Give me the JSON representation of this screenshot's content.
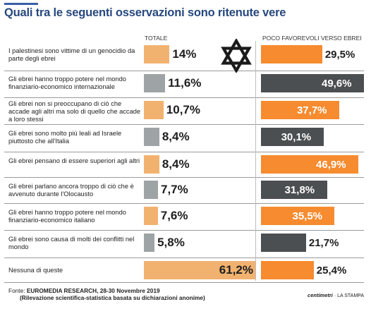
{
  "title": "Quali tra le seguenti osservazioni sono ritenute vere",
  "colors": {
    "accent": "#26487f",
    "total_bar": "#f2b26f",
    "total_bar_muted": "#9ea3a6",
    "poco_bar": "#f68b2f",
    "poco_bar_muted": "#4c4f52"
  },
  "icon": "star-of-david-icon",
  "source": {
    "prefix": "Fonte: ",
    "name": "EUROMEDIA RESEARCH, 28-30 Novembre 2019",
    "note": "(Rilevazione scientifica-statistica basata su dichiarazioni anonime)"
  },
  "credits": {
    "brand": "centimetri",
    "paper": "· LA STAMPA"
  },
  "chart_data": {
    "type": "bar",
    "orientation": "horizontal",
    "title": "Quali tra le seguenti osservazioni sono ritenute vere",
    "categories": [
      "I palestinesi sono vittime di un genocidio da parte degli ebrei",
      "Gli ebrei hanno troppo potere nel mondo finanziario-economico internazionale",
      "Gli ebrei non si preoccupano di ciò che accade agli altri ma solo di quello che accade a loro stessi",
      "Gli ebrei sono molto più leali ad Israele piuttosto che all'Italia",
      "Gli ebrei pensano di essere superiori agli altri",
      "Gli ebrei parlano ancora troppo di ciò che è avvenuto durante l'Olocausto",
      "Gli ebrei hanno troppo potere nel mondo finanziario-economico italiano",
      "Gli ebrei sono causa di molti dei conflitti nel mondo",
      "Nessuna di queste"
    ],
    "series": [
      {
        "name": "TOTALE",
        "values": [
          14,
          11.6,
          10.7,
          8.4,
          8.4,
          7.7,
          7.6,
          5.8,
          61.2
        ],
        "labels": [
          "14%",
          "11,6%",
          "10,7%",
          "8,4%",
          "8,4%",
          "7,7%",
          "7,6%",
          "5,8%",
          "61,2%"
        ],
        "highlight": [
          true,
          false,
          true,
          false,
          true,
          false,
          true,
          false,
          true
        ]
      },
      {
        "name": "POCO FAVOREVOLI VERSO EBREI",
        "values": [
          29.5,
          49.6,
          37.7,
          30.1,
          46.9,
          31.8,
          35.5,
          21.7,
          25.4
        ],
        "labels": [
          "29,5%",
          "49,6%",
          "37,7%",
          "30,1%",
          "46,9%",
          "31,8%",
          "35,5%",
          "21,7%",
          "25,4%"
        ],
        "highlight": [
          true,
          false,
          true,
          false,
          true,
          false,
          true,
          false,
          true
        ]
      }
    ]
  }
}
